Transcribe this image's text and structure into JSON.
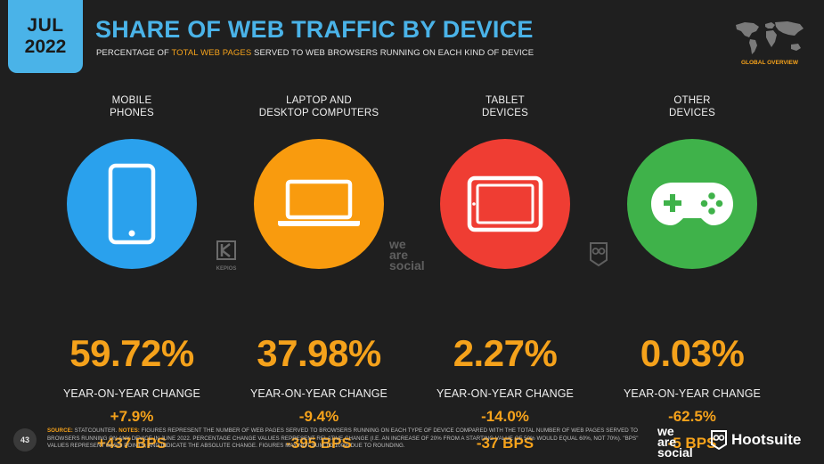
{
  "badge": {
    "month": "JUL",
    "year": "2022"
  },
  "header": {
    "title": "SHARE OF WEB TRAFFIC BY DEVICE",
    "subtitle_pre": "PERCENTAGE OF ",
    "subtitle_highlight": "TOTAL WEB PAGES",
    "subtitle_post": " SERVED TO WEB BROWSERS RUNNING ON EACH KIND OF DEVICE"
  },
  "map_label": "GLOBAL OVERVIEW",
  "devices": [
    {
      "label_1": "MOBILE",
      "label_2": "PHONES",
      "icon": "smartphone-icon",
      "color": "#2aa1ed",
      "share": "59.72%",
      "yoy_label": "YEAR-ON-YEAR CHANGE",
      "yoy_pct": "+7.9%",
      "yoy_bps": "+437 BPS"
    },
    {
      "label_1": "LAPTOP AND",
      "label_2": "DESKTOP COMPUTERS",
      "icon": "laptop-icon",
      "color": "#f99b0e",
      "share": "37.98%",
      "yoy_label": "YEAR-ON-YEAR CHANGE",
      "yoy_pct": "-9.4%",
      "yoy_bps": "-395 BPS"
    },
    {
      "label_1": "TABLET",
      "label_2": "DEVICES",
      "icon": "tablet-icon",
      "color": "#ef3d33",
      "share": "2.27%",
      "yoy_label": "YEAR-ON-YEAR CHANGE",
      "yoy_pct": "-14.0%",
      "yoy_bps": "-37 BPS"
    },
    {
      "label_1": "OTHER",
      "label_2": "DEVICES",
      "icon": "gamepad-icon",
      "color": "#3fb24a",
      "share": "0.03%",
      "yoy_label": "YEAR-ON-YEAR CHANGE",
      "yoy_pct": "-62.5%",
      "yoy_bps": "-5 BPS"
    }
  ],
  "watermarks": {
    "kepios": "KEPIOS",
    "was_1": "we",
    "was_2": "are",
    "was_3": "social"
  },
  "footer": {
    "page_number": "43",
    "source_label": "SOURCE:",
    "source_text": " STATCOUNTER. ",
    "notes_label": "NOTES:",
    "notes_text": " FIGURES REPRESENT THE NUMBER OF WEB PAGES SERVED TO BROWSERS RUNNING ON EACH TYPE OF DEVICE COMPARED WITH THE TOTAL NUMBER OF WEB PAGES SERVED TO BROWSERS RUNNING ON ANY DEVICE IN JUNE 2022. PERCENTAGE CHANGE VALUES REPRESENT RELATIVE CHANGE (I.E. AN INCREASE OF 20% FROM A STARTING VALUE OF 50% WOULD EQUAL 60%, NOT 70%). \"BPS\" VALUES REPRESENT BASIS POINTS, AND INDICATE THE ABSOLUTE CHANGE. FIGURES MAY NOT SUM TO 100% DUE TO ROUNDING.",
    "logo_was_1": "we",
    "logo_was_2": "are",
    "logo_was_3": "social",
    "logo_hootsuite": "Hootsuite"
  }
}
